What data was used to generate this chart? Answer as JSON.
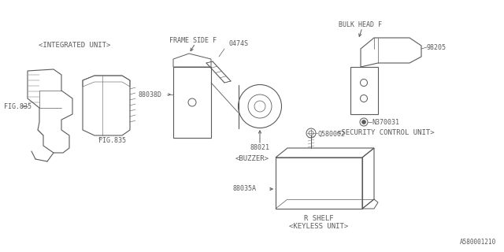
{
  "bg_color": "#ffffff",
  "line_color": "#5a5a5a",
  "fig_ref": "A580001210",
  "labels": {
    "integrated_unit": "<INTEGRATED UNIT>",
    "buzzer": "<BUZZER>",
    "security_control_unit": "<SECURITY CONTROL UNIT>",
    "keyless_unit": "<KEYLESS UNIT>",
    "fig835_left": "FIG.835",
    "fig835_right": "FIG.835",
    "frame_side_f": "FRAME SIDE F",
    "bulk_head_f": "BULK HEAD F",
    "r_shelf": "R SHELF",
    "part_88038d": "88038D",
    "part_88021": "88021",
    "part_0474s": "0474S",
    "part_98205": "98205",
    "part_n370031": "N370031",
    "part_q580002": "Q580002",
    "part_88035a": "88035A"
  },
  "font_size_label": 6.5,
  "font_size_partno": 6.0,
  "font_size_ref": 5.5
}
